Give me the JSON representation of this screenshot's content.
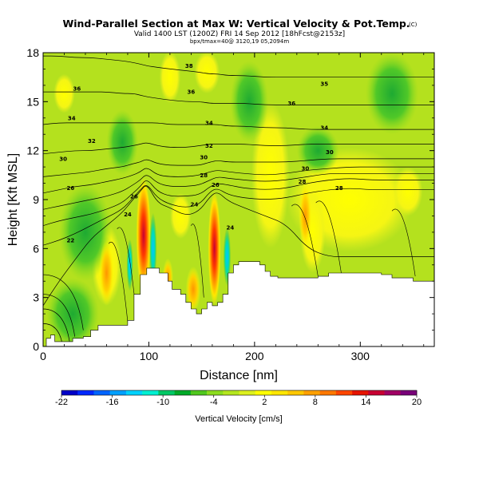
{
  "chart_data": {
    "type": "heatmap",
    "title": "Wind-Parallel Section at Max W: Vertical Velocity & Pot.Temp.",
    "title_mark": "(C)",
    "subtitle": "Valid 1400 LST (1200Z) FRI 14 Sep 2012 [18hFcst@2153z]",
    "subtitle2": "bpx/tmax=40@ 3120,19 05,2094m",
    "xlabel": "Distance [nm]",
    "ylabel": "Height [Kft MSL]",
    "xlim": [
      0,
      370
    ],
    "ylim": [
      0,
      18
    ],
    "xticks": [
      0,
      100,
      200,
      300
    ],
    "yticks": [
      0,
      3,
      6,
      9,
      12,
      15,
      18
    ],
    "colorbar": {
      "label": "Vertical Velocity [cm/s]",
      "tick_labels": [
        "-22",
        "-16",
        "-10",
        "-4",
        "2",
        "8",
        "14",
        "20"
      ],
      "colors": [
        "#0000c8",
        "#0028ff",
        "#0064ff",
        "#00a0ff",
        "#00d2ff",
        "#00f0d2",
        "#00c864",
        "#00aa28",
        "#50c81e",
        "#8cdc1e",
        "#b4e61e",
        "#dcf01e",
        "#ffff00",
        "#ffe600",
        "#ffc800",
        "#ffa000",
        "#ff7800",
        "#ff4600",
        "#e61400",
        "#c80032",
        "#a00064",
        "#780078"
      ]
    },
    "terrain_profile": {
      "x": [
        0,
        3,
        7,
        11,
        20,
        28,
        38,
        45,
        52,
        60,
        70,
        80,
        86,
        92,
        98,
        105,
        110,
        118,
        122,
        130,
        135,
        140,
        145,
        150,
        155,
        160,
        165,
        170,
        175,
        180,
        185,
        190,
        195,
        205,
        210,
        215,
        222,
        230,
        240,
        250,
        260,
        270,
        280,
        290,
        300,
        310,
        320,
        330,
        340,
        350,
        355,
        360,
        370
      ],
      "height": [
        0.0,
        0.5,
        0.7,
        0.3,
        0.3,
        0.5,
        0.6,
        1.0,
        1.3,
        1.3,
        1.3,
        1.6,
        3.2,
        4.4,
        4.8,
        4.8,
        4.5,
        4.0,
        3.5,
        3.2,
        2.7,
        2.3,
        2.0,
        2.3,
        2.7,
        2.5,
        2.7,
        3.2,
        4.5,
        5.0,
        5.2,
        5.2,
        5.2,
        5.0,
        4.6,
        4.3,
        4.2,
        4.2,
        4.2,
        4.2,
        4.3,
        4.5,
        4.5,
        4.5,
        4.5,
        4.5,
        4.4,
        4.2,
        4.2,
        4.0,
        4.0,
        4.0,
        4.0
      ]
    },
    "isentropes": {
      "variable": "Potential temperature (C)",
      "levels": [
        {
          "label": "20",
          "y": [
            2.5,
            4.0,
            5.3,
            6.6,
            7.4,
            8.2,
            9.0,
            9.5,
            10.0,
            8.8,
            8.5,
            8.0,
            8.3,
            9.2,
            9.5,
            8.9,
            8.5,
            8.0,
            7.5,
            6.0,
            5.5,
            5.5,
            5.5,
            5.5,
            5.5
          ]
        },
        {
          "label": "22",
          "y": [
            6.2,
            6.5,
            6.9,
            7.4,
            7.9,
            8.4,
            9.1,
            9.6,
            10.0,
            9.1,
            8.7,
            8.5,
            8.7,
            9.5,
            9.7,
            9.3,
            9.1,
            9.0,
            9.1,
            9.4,
            9.6,
            9.7,
            9.6,
            9.6,
            9.6
          ]
        },
        {
          "label": "24",
          "y": [
            7.4,
            7.7,
            7.9,
            8.1,
            8.4,
            8.8,
            9.4,
            9.8,
            10.3,
            9.5,
            9.2,
            9.2,
            9.3,
            9.8,
            10.0,
            9.9,
            9.7,
            9.6,
            9.7,
            10.0,
            10.2,
            10.3,
            10.2,
            10.2,
            10.2
          ]
        },
        {
          "label": "26",
          "y": [
            8.4,
            8.6,
            8.8,
            9.0,
            9.2,
            9.5,
            9.9,
            10.2,
            10.6,
            10.0,
            9.8,
            9.8,
            9.9,
            10.2,
            10.4,
            10.3,
            10.2,
            10.1,
            10.2,
            10.4,
            10.6,
            10.6,
            10.6,
            10.6,
            10.6
          ]
        },
        {
          "label": "28",
          "y": [
            9.4,
            9.6,
            9.8,
            9.9,
            10.1,
            10.3,
            10.5,
            10.7,
            11.0,
            10.5,
            10.4,
            10.4,
            10.5,
            10.7,
            10.8,
            10.7,
            10.6,
            10.5,
            10.6,
            10.8,
            10.9,
            11.0,
            11.0,
            11.0,
            11.0
          ]
        },
        {
          "label": "30",
          "y": [
            10.4,
            10.5,
            10.6,
            10.7,
            10.9,
            11.0,
            11.2,
            11.3,
            11.5,
            11.2,
            11.1,
            11.1,
            11.1,
            11.3,
            11.4,
            11.3,
            11.3,
            11.3,
            11.3,
            11.4,
            11.5,
            11.5,
            11.5,
            11.5,
            11.5
          ]
        },
        {
          "label": "32",
          "y": [
            11.8,
            11.9,
            12.0,
            12.0,
            12.1,
            12.2,
            12.3,
            12.4,
            12.5,
            12.3,
            12.2,
            12.2,
            12.3,
            12.4,
            12.4,
            12.4,
            12.4,
            12.3,
            12.3,
            12.4,
            12.4,
            12.4,
            12.4,
            12.4,
            12.4
          ]
        },
        {
          "label": "34",
          "y": [
            13.6,
            13.7,
            13.7,
            13.7,
            13.7,
            13.7,
            13.7,
            13.7,
            13.7,
            13.7,
            13.6,
            13.6,
            13.6,
            13.6,
            13.6,
            13.5,
            13.5,
            13.4,
            13.4,
            13.3,
            13.3,
            13.3,
            13.3,
            13.3,
            13.3
          ]
        },
        {
          "label": "36",
          "y": [
            15.6,
            15.6,
            15.6,
            15.6,
            15.6,
            15.5,
            15.5,
            15.4,
            15.3,
            15.2,
            15.1,
            15.0,
            15.0,
            14.9,
            14.9,
            14.9,
            14.9,
            14.8,
            14.8,
            14.8,
            14.8,
            14.8,
            14.8,
            14.8,
            14.8
          ]
        },
        {
          "label": "38",
          "y": [
            17.8,
            17.8,
            17.7,
            17.7,
            17.6,
            17.5,
            17.4,
            17.3,
            17.2,
            17.1,
            17.0,
            16.9,
            16.8,
            16.7,
            16.7,
            16.6,
            16.6,
            16.5,
            16.5,
            16.5,
            16.5,
            16.5,
            16.5,
            16.5,
            16.5
          ]
        }
      ],
      "x": [
        0,
        15,
        30,
        45,
        60,
        75,
        85,
        92,
        98,
        108,
        120,
        135,
        148,
        158,
        165,
        175,
        190,
        210,
        230,
        250,
        270,
        290,
        310,
        340,
        370
      ],
      "inline_labels": [
        {
          "text": "38",
          "x": 138,
          "y": 17.2
        },
        {
          "text": "36",
          "x": 32,
          "y": 15.8
        },
        {
          "text": "36",
          "x": 140,
          "y": 15.6
        },
        {
          "text": "36",
          "x": 235,
          "y": 14.9
        },
        {
          "text": "35",
          "x": 266,
          "y": 16.1
        },
        {
          "text": "34",
          "x": 27,
          "y": 14.0
        },
        {
          "text": "34",
          "x": 157,
          "y": 13.7
        },
        {
          "text": "34",
          "x": 266,
          "y": 13.4
        },
        {
          "text": "32",
          "x": 46,
          "y": 12.6
        },
        {
          "text": "32",
          "x": 157,
          "y": 12.3
        },
        {
          "text": "30",
          "x": 19,
          "y": 11.5
        },
        {
          "text": "30",
          "x": 152,
          "y": 11.6
        },
        {
          "text": "30",
          "x": 248,
          "y": 10.9
        },
        {
          "text": "30",
          "x": 271,
          "y": 11.9
        },
        {
          "text": "28",
          "x": 152,
          "y": 10.5
        },
        {
          "text": "28",
          "x": 245,
          "y": 10.1
        },
        {
          "text": "28",
          "x": 280,
          "y": 9.7
        },
        {
          "text": "26",
          "x": 26,
          "y": 9.7
        },
        {
          "text": "26",
          "x": 163,
          "y": 9.9
        },
        {
          "text": "26",
          "x": 86,
          "y": 9.2
        },
        {
          "text": "24",
          "x": 80,
          "y": 8.1
        },
        {
          "text": "24",
          "x": 143,
          "y": 8.7
        },
        {
          "text": "24",
          "x": 177,
          "y": 7.3
        },
        {
          "text": "22",
          "x": 26,
          "y": 6.5
        }
      ]
    },
    "vertical_velocity_features": [
      {
        "name": "updraft",
        "x": 95,
        "y": 6.5,
        "w_cm_s": 20
      },
      {
        "name": "updraft",
        "x": 162,
        "y": 6.0,
        "w_cm_s": 18
      },
      {
        "name": "downdraft",
        "x": 104,
        "y": 6.0,
        "w_cm_s": -12
      },
      {
        "name": "downdraft",
        "x": 174,
        "y": 5.5,
        "w_cm_s": -12
      },
      {
        "name": "updraft",
        "x": 60,
        "y": 5.0,
        "w_cm_s": 10
      },
      {
        "name": "updraft",
        "x": 280,
        "y": 8.0,
        "w_cm_s": 4
      },
      {
        "name": "updraft",
        "x": 118,
        "y": 16.5,
        "w_cm_s": 4
      }
    ]
  }
}
